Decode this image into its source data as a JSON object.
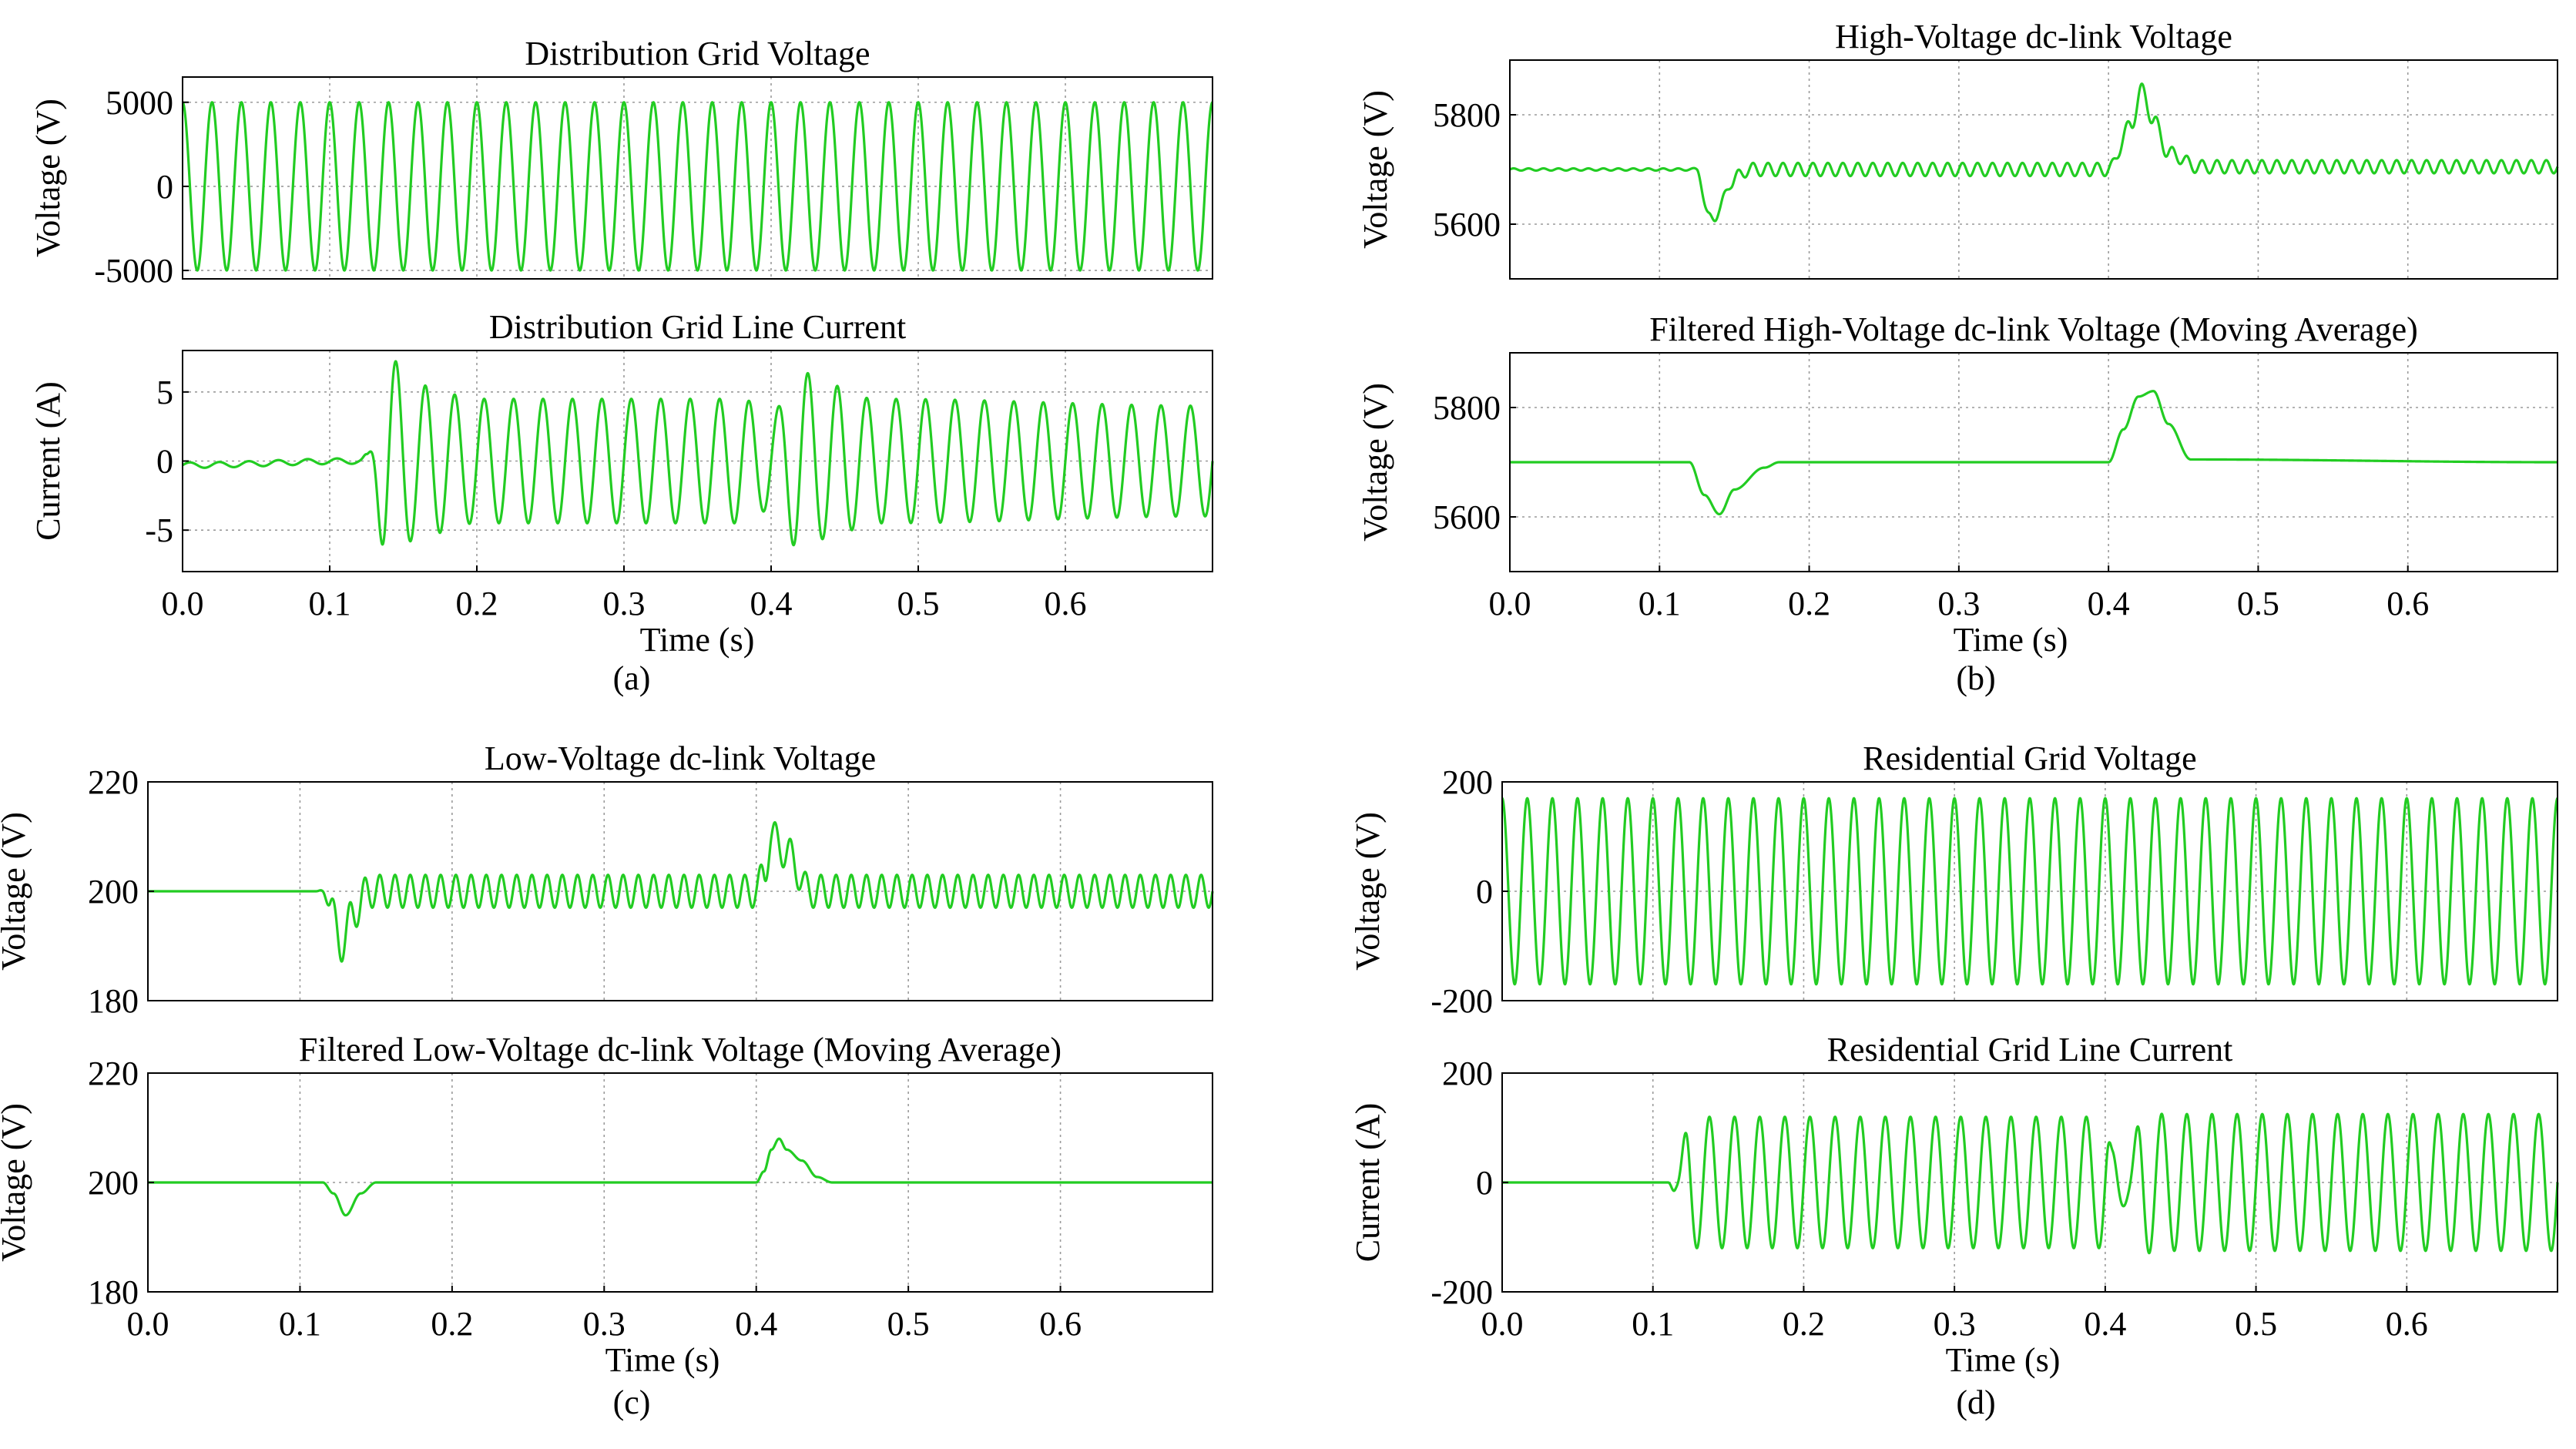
{
  "figure": {
    "line_color": "#22cc22",
    "grid_color": "#9a9a9a",
    "axis_color": "#000000"
  },
  "panels": [
    {
      "id": "a",
      "label": "(a)",
      "xlabel": "Time (s)"
    },
    {
      "id": "b",
      "label": "(b)",
      "xlabel": "Time (s)"
    },
    {
      "id": "c",
      "label": "(c)",
      "xlabel": "Time (s)"
    },
    {
      "id": "d",
      "label": "(d)",
      "xlabel": "Time (s)"
    }
  ],
  "chart_data": [
    {
      "id": "a1",
      "panel": "a",
      "type": "line",
      "title": "Distribution Grid Voltage",
      "ylabel": "Voltage (V)",
      "xlim": [
        0,
        0.7
      ],
      "ylim": [
        -5500,
        6500
      ],
      "xticks": [],
      "xtick_labels": [],
      "yticks": [
        -5000,
        0,
        5000
      ],
      "ytick_labels": [
        "-5000",
        "0",
        "5000"
      ],
      "grid": true,
      "signal": {
        "kind": "sine",
        "amplitude": 5000,
        "frequency_hz": 50,
        "phase_deg": 90
      }
    },
    {
      "id": "a2",
      "panel": "a",
      "type": "line",
      "title": "Distribution Grid Line Current",
      "ylabel": "Current (A)",
      "xlim": [
        0,
        0.7
      ],
      "ylim": [
        -8,
        8
      ],
      "xticks": [
        0,
        0.1,
        0.2,
        0.3,
        0.4,
        0.5,
        0.6
      ],
      "xtick_labels": [
        "0.0",
        "0.1",
        "0.2",
        "0.3",
        "0.4",
        "0.5",
        "0.6"
      ],
      "yticks": [
        -5,
        0,
        5
      ],
      "ytick_labels": [
        "-5",
        "0",
        "5"
      ],
      "grid": true,
      "signal": {
        "kind": "sine_env",
        "frequency_hz": 50,
        "phase_deg": 0,
        "envelope": [
          [
            0,
            0.2
          ],
          [
            0.12,
            0.2
          ],
          [
            0.125,
            0.5
          ],
          [
            0.14,
            7.5
          ],
          [
            0.16,
            5.5
          ],
          [
            0.2,
            4.5
          ],
          [
            0.38,
            4.5
          ],
          [
            0.4,
            3.5
          ],
          [
            0.42,
            6.5
          ],
          [
            0.44,
            5.5
          ],
          [
            0.47,
            4.5
          ],
          [
            0.7,
            4.0
          ]
        ],
        "offset": [
          [
            0,
            -0.3
          ],
          [
            0.12,
            0
          ],
          [
            0.7,
            0
          ]
        ]
      }
    },
    {
      "id": "b1",
      "panel": "b",
      "type": "line",
      "title": "High-Voltage dc-link Voltage",
      "ylabel": "Voltage (V)",
      "xlim": [
        0,
        0.7
      ],
      "ylim": [
        5500,
        5900
      ],
      "xticks": [],
      "xtick_labels": [],
      "yticks": [
        5600,
        5800
      ],
      "ytick_labels": [
        "5600",
        "5800"
      ],
      "grid": true,
      "signal": {
        "kind": "dc_ripple",
        "frequency_hz": 100,
        "baseline": [
          [
            0,
            5700
          ],
          [
            0.125,
            5700
          ],
          [
            0.133,
            5610
          ],
          [
            0.14,
            5625
          ],
          [
            0.148,
            5680
          ],
          [
            0.16,
            5700
          ],
          [
            0.4,
            5700
          ],
          [
            0.415,
            5780
          ],
          [
            0.422,
            5845
          ],
          [
            0.43,
            5790
          ],
          [
            0.44,
            5730
          ],
          [
            0.46,
            5705
          ],
          [
            0.7,
            5705
          ]
        ],
        "ripple": [
          [
            0,
            2
          ],
          [
            0.12,
            2
          ],
          [
            0.14,
            15
          ],
          [
            0.16,
            12
          ],
          [
            0.7,
            12
          ]
        ]
      }
    },
    {
      "id": "b2",
      "panel": "b",
      "type": "line",
      "title": "Filtered High-Voltage dc-link Voltage (Moving Average)",
      "ylabel": "Voltage (V)",
      "xlim": [
        0,
        0.7
      ],
      "ylim": [
        5500,
        5900
      ],
      "xticks": [
        0,
        0.1,
        0.2,
        0.3,
        0.4,
        0.5,
        0.6
      ],
      "xtick_labels": [
        "0.0",
        "0.1",
        "0.2",
        "0.3",
        "0.4",
        "0.5",
        "0.6"
      ],
      "yticks": [
        5600,
        5800
      ],
      "ytick_labels": [
        "5600",
        "5800"
      ],
      "grid": true,
      "signal": {
        "kind": "smooth",
        "points": [
          [
            0,
            5700
          ],
          [
            0.12,
            5700
          ],
          [
            0.13,
            5640
          ],
          [
            0.14,
            5605
          ],
          [
            0.15,
            5650
          ],
          [
            0.17,
            5690
          ],
          [
            0.18,
            5700
          ],
          [
            0.4,
            5700
          ],
          [
            0.41,
            5760
          ],
          [
            0.42,
            5820
          ],
          [
            0.43,
            5830
          ],
          [
            0.44,
            5770
          ],
          [
            0.455,
            5705
          ],
          [
            0.7,
            5700
          ]
        ]
      }
    },
    {
      "id": "c1",
      "panel": "c",
      "type": "line",
      "title": "Low-Voltage dc-link Voltage",
      "ylabel": "Voltage (V)",
      "xlim": [
        0,
        0.7
      ],
      "ylim": [
        180,
        220
      ],
      "xticks": [],
      "xtick_labels": [],
      "yticks": [
        180,
        200,
        220
      ],
      "ytick_labels": [
        "180",
        "200",
        "220"
      ],
      "grid": true,
      "signal": {
        "kind": "dc_ripple",
        "frequency_hz": 100,
        "baseline": [
          [
            0,
            200
          ],
          [
            0.115,
            200
          ],
          [
            0.12,
            198
          ],
          [
            0.127,
            190
          ],
          [
            0.135,
            196
          ],
          [
            0.145,
            200
          ],
          [
            0.4,
            200
          ],
          [
            0.405,
            203
          ],
          [
            0.41,
            210
          ],
          [
            0.42,
            207
          ],
          [
            0.435,
            200
          ],
          [
            0.7,
            200
          ]
        ],
        "ripple": [
          [
            0,
            0
          ],
          [
            0.11,
            0
          ],
          [
            0.13,
            3
          ],
          [
            0.15,
            3
          ],
          [
            0.7,
            3
          ]
        ]
      }
    },
    {
      "id": "c2",
      "panel": "c",
      "type": "line",
      "title": "Filtered Low-Voltage dc-link Voltage (Moving Average)",
      "ylabel": "Voltage (V)",
      "xlim": [
        0,
        0.7
      ],
      "ylim": [
        180,
        220
      ],
      "xticks": [
        0,
        0.1,
        0.2,
        0.3,
        0.4,
        0.5,
        0.6
      ],
      "xtick_labels": [
        "0.0",
        "0.1",
        "0.2",
        "0.3",
        "0.4",
        "0.5",
        "0.6"
      ],
      "yticks": [
        180,
        200,
        220
      ],
      "ytick_labels": [
        "180",
        "200",
        "220"
      ],
      "grid": true,
      "signal": {
        "kind": "smooth",
        "points": [
          [
            0,
            200
          ],
          [
            0.115,
            200
          ],
          [
            0.122,
            198
          ],
          [
            0.13,
            194
          ],
          [
            0.14,
            198
          ],
          [
            0.15,
            200
          ],
          [
            0.4,
            200
          ],
          [
            0.405,
            202
          ],
          [
            0.41,
            206
          ],
          [
            0.415,
            208
          ],
          [
            0.42,
            206
          ],
          [
            0.43,
            204
          ],
          [
            0.44,
            201
          ],
          [
            0.45,
            200
          ],
          [
            0.7,
            200
          ]
        ]
      }
    },
    {
      "id": "d1",
      "panel": "d",
      "type": "line",
      "title": "Residential Grid Voltage",
      "ylabel": "Voltage (V)",
      "xlim": [
        0,
        0.7
      ],
      "ylim": [
        -200,
        200
      ],
      "xticks": [],
      "xtick_labels": [],
      "yticks": [
        -200,
        0,
        200
      ],
      "ytick_labels": [
        "-200",
        "0",
        "200"
      ],
      "grid": true,
      "signal": {
        "kind": "sine",
        "amplitude": 170,
        "frequency_hz": 60,
        "phase_deg": 90
      }
    },
    {
      "id": "d2",
      "panel": "d",
      "type": "line",
      "title": "Residential Grid Line Current",
      "ylabel": "Current (A)",
      "xlim": [
        0,
        0.7
      ],
      "ylim": [
        -200,
        200
      ],
      "xticks": [
        0,
        0.1,
        0.2,
        0.3,
        0.4,
        0.5,
        0.6
      ],
      "xtick_labels": [
        "0.0",
        "0.1",
        "0.2",
        "0.3",
        "0.4",
        "0.5",
        "0.6"
      ],
      "yticks": [
        -200,
        0,
        200
      ],
      "ytick_labels": [
        "-200",
        "0",
        "200"
      ],
      "grid": true,
      "signal": {
        "kind": "sine_env",
        "frequency_hz": 60,
        "phase_deg": 0,
        "envelope": [
          [
            0,
            0
          ],
          [
            0.11,
            0
          ],
          [
            0.115,
            20
          ],
          [
            0.125,
            120
          ],
          [
            0.4,
            120
          ],
          [
            0.405,
            60
          ],
          [
            0.415,
            40
          ],
          [
            0.425,
            130
          ],
          [
            0.44,
            125
          ],
          [
            0.7,
            125
          ]
        ],
        "offset": [
          [
            0,
            0
          ],
          [
            0.7,
            0
          ]
        ]
      }
    }
  ]
}
